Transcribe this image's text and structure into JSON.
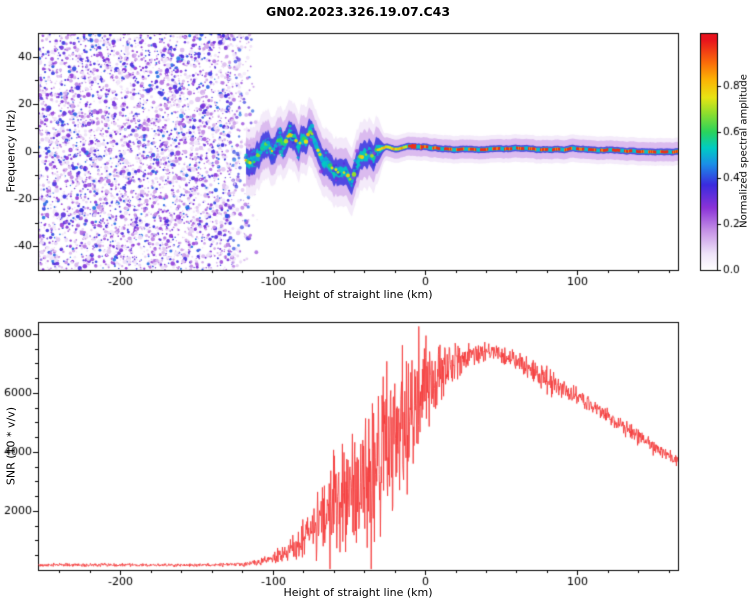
{
  "title": "GN02.2023.326.19.07.C43",
  "chart_data": [
    {
      "id": "spectrogram",
      "type": "heatmap",
      "xlabel": "Height of straight line (km)",
      "ylabel": "Frequency (Hz)",
      "xlim": [
        -254,
        166
      ],
      "ylim": [
        -50,
        50
      ],
      "xticks": [
        -200,
        -100,
        0,
        100
      ],
      "yticks": [
        -40,
        -20,
        0,
        20,
        40
      ],
      "x_minor_step": 20,
      "y_minor_step": 10,
      "noise": {
        "x_end": -128,
        "fade_end": -110,
        "count": 4200,
        "value_min": 0.06,
        "value_span": 0.38
      },
      "trace": [
        [
          -121,
          -4
        ],
        [
          -113,
          -2
        ],
        [
          -108,
          2
        ],
        [
          -103,
          4
        ],
        [
          -99,
          1
        ],
        [
          -95,
          5
        ],
        [
          -91,
          3
        ],
        [
          -87,
          6
        ],
        [
          -83,
          3
        ],
        [
          -79,
          7
        ],
        [
          -75,
          9
        ],
        [
          -71,
          4
        ],
        [
          -67,
          -2
        ],
        [
          -63,
          -6
        ],
        [
          -59,
          -9
        ],
        [
          -55,
          -11
        ],
        [
          -51,
          -8
        ],
        [
          -47,
          -9
        ],
        [
          -43,
          -4
        ],
        [
          -39,
          -2
        ],
        [
          -35,
          -1
        ],
        [
          -30,
          1
        ],
        [
          -25,
          2
        ],
        [
          -20,
          1
        ],
        [
          -12,
          2
        ],
        [
          0,
          2
        ],
        [
          20,
          1
        ],
        [
          60,
          1
        ],
        [
          100,
          1
        ],
        [
          140,
          0
        ],
        [
          166,
          0
        ]
      ],
      "band": {
        "start": -118,
        "wavy_end": -32,
        "tight_start": -26,
        "red_start": -12.5,
        "glow_hz_wavy": 20,
        "glow_hz_tight": 8,
        "mid_hz_wavy": 11,
        "mid_hz_tight": 2.8,
        "inner_hz_wavy": 4.5,
        "inner_hz_tight": 1.6
      },
      "colorbar": {
        "label": "Normalized spectral amplitude",
        "ticks": [
          0.0,
          0.2,
          0.4,
          0.6,
          0.8
        ],
        "vmin": 0.0,
        "vmax": 1.03,
        "stops": [
          [
            0,
            "#ffffff"
          ],
          [
            0.07,
            "#efe4f9"
          ],
          [
            0.17,
            "#c693e6"
          ],
          [
            0.27,
            "#8b33d8"
          ],
          [
            0.37,
            "#3b2bdf"
          ],
          [
            0.46,
            "#1b8fe8"
          ],
          [
            0.53,
            "#00ccc4"
          ],
          [
            0.6,
            "#2ad45c"
          ],
          [
            0.68,
            "#8ede2e"
          ],
          [
            0.75,
            "#e8e414"
          ],
          [
            0.83,
            "#fcb105"
          ],
          [
            0.9,
            "#fb6d0a"
          ],
          [
            1,
            "#e8131d"
          ]
        ]
      }
    },
    {
      "id": "snr",
      "type": "line",
      "xlabel": "Height of straight line (km)",
      "ylabel": "SNR (10 * v/v)",
      "xlim": [
        -254,
        166
      ],
      "ylim": [
        0,
        8400
      ],
      "xticks": [
        -200,
        -100,
        0,
        100
      ],
      "yticks": [
        2000,
        4000,
        6000,
        8000
      ],
      "x_minor_step": 20,
      "y_minor_step": 500,
      "series": [
        {
          "name": "SNR",
          "color": "#f53b3b",
          "envelope": [
            [
              -254,
              170,
              60
            ],
            [
              -140,
              170,
              60
            ],
            [
              -120,
              200,
              80
            ],
            [
              -110,
              260,
              120
            ],
            [
              -100,
              380,
              220
            ],
            [
              -92,
              550,
              350
            ],
            [
              -85,
              800,
              600
            ],
            [
              -78,
              1100,
              900
            ],
            [
              -70,
              1500,
              1300
            ],
            [
              -62,
              1900,
              1700
            ],
            [
              -54,
              2300,
              2100
            ],
            [
              -46,
              2700,
              2500
            ],
            [
              -38,
              3100,
              2900
            ],
            [
              -30,
              3600,
              3200
            ],
            [
              -22,
              4200,
              3400
            ],
            [
              -14,
              4800,
              3300
            ],
            [
              -6,
              5500,
              2600
            ],
            [
              2,
              6100,
              1800
            ],
            [
              10,
              6600,
              1300
            ],
            [
              18,
              6900,
              900
            ],
            [
              26,
              7150,
              600
            ],
            [
              34,
              7350,
              400
            ],
            [
              42,
              7400,
              350
            ],
            [
              50,
              7300,
              350
            ],
            [
              60,
              7050,
              400
            ],
            [
              70,
              6800,
              450
            ],
            [
              80,
              6500,
              500
            ],
            [
              90,
              6200,
              450
            ],
            [
              100,
              5900,
              380
            ],
            [
              115,
              5400,
              330
            ],
            [
              130,
              4900,
              300
            ],
            [
              145,
              4350,
              280
            ],
            [
              160,
              3850,
              260
            ],
            [
              166,
              3700,
              250
            ]
          ]
        }
      ]
    }
  ]
}
